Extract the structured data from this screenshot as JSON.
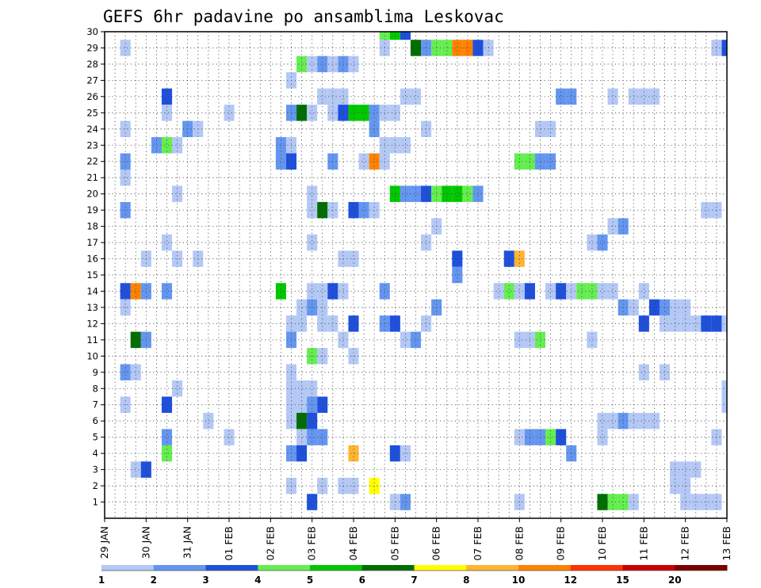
{
  "chart_data": {
    "type": "heatmap",
    "title": "GEFS 6hr padavine po ansamblima Leskovac",
    "xlabel": "",
    "ylabel": "",
    "x_tick_labels": [
      "29 JAN",
      "30 JAN",
      "31 JAN",
      "01 FEB",
      "02 FEB",
      "03 FEB",
      "04 FEB",
      "05 FEB",
      "06 FEB",
      "07 FEB",
      "08 FEB",
      "09 FEB",
      "10 FEB",
      "11 FEB",
      "12 FEB",
      "13 FEB"
    ],
    "x_range_6h_steps": [
      0,
      60
    ],
    "y_tick_labels": [
      "1",
      "2",
      "3",
      "4",
      "5",
      "6",
      "7",
      "8",
      "9",
      "10",
      "11",
      "12",
      "13",
      "14",
      "15",
      "16",
      "17",
      "18",
      "19",
      "20",
      "21",
      "22",
      "23",
      "24",
      "25",
      "26",
      "27",
      "28",
      "29",
      "30"
    ],
    "y_range": [
      0,
      30
    ],
    "grid": true,
    "legend": {
      "placement": "bottom",
      "colors": [
        "#b4c8f5",
        "#6496f0",
        "#1e50dc",
        "#64ee50",
        "#00c800",
        "#006e00",
        "#ffff00",
        "#ffb432",
        "#ff8200",
        "#ff3200",
        "#c80000",
        "#7d0000"
      ],
      "labels": [
        "1",
        "2",
        "3",
        "4",
        "5",
        "6",
        "7",
        "8",
        "10",
        "12",
        "15",
        "20"
      ]
    },
    "note_values": "cells: [time_step_index (6h steps from 29 JAN 00Z), member_row (0 = bottom row below member 1), color_class index into legend.colors]",
    "cells": [
      [
        2,
        29,
        0
      ],
      [
        59,
        29,
        0
      ],
      [
        60,
        29,
        2
      ],
      [
        27,
        29,
        0
      ],
      [
        30,
        29,
        5
      ],
      [
        31,
        29,
        1
      ],
      [
        32,
        29,
        3
      ],
      [
        33,
        29,
        3
      ],
      [
        34,
        29,
        8
      ],
      [
        35,
        29,
        8
      ],
      [
        36,
        29,
        2
      ],
      [
        37,
        29,
        0
      ],
      [
        27,
        30,
        3
      ],
      [
        28,
        30,
        4
      ],
      [
        29,
        30,
        2
      ],
      [
        19,
        28,
        3
      ],
      [
        20,
        28,
        0
      ],
      [
        21,
        28,
        1
      ],
      [
        22,
        28,
        0
      ],
      [
        23,
        28,
        1
      ],
      [
        24,
        28,
        0
      ],
      [
        18,
        27,
        0
      ],
      [
        6,
        26,
        2
      ],
      [
        21,
        26,
        0
      ],
      [
        22,
        26,
        0
      ],
      [
        23,
        26,
        0
      ],
      [
        29,
        26,
        0
      ],
      [
        30,
        26,
        0
      ],
      [
        44,
        26,
        1
      ],
      [
        45,
        26,
        1
      ],
      [
        49,
        26,
        0
      ],
      [
        51,
        26,
        0
      ],
      [
        52,
        26,
        0
      ],
      [
        53,
        26,
        0
      ],
      [
        6,
        25,
        0
      ],
      [
        12,
        25,
        0
      ],
      [
        18,
        25,
        1
      ],
      [
        19,
        25,
        5
      ],
      [
        20,
        25,
        0
      ],
      [
        22,
        25,
        0
      ],
      [
        23,
        25,
        2
      ],
      [
        24,
        25,
        4
      ],
      [
        25,
        25,
        4
      ],
      [
        26,
        25,
        1
      ],
      [
        27,
        25,
        0
      ],
      [
        28,
        25,
        0
      ],
      [
        2,
        24,
        0
      ],
      [
        8,
        24,
        1
      ],
      [
        9,
        24,
        0
      ],
      [
        26,
        24,
        1
      ],
      [
        31,
        24,
        0
      ],
      [
        42,
        24,
        0
      ],
      [
        43,
        24,
        0
      ],
      [
        5,
        23,
        1
      ],
      [
        6,
        23,
        3
      ],
      [
        7,
        23,
        0
      ],
      [
        17,
        23,
        1
      ],
      [
        18,
        23,
        0
      ],
      [
        27,
        23,
        0
      ],
      [
        28,
        23,
        0
      ],
      [
        29,
        23,
        0
      ],
      [
        2,
        22,
        1
      ],
      [
        17,
        22,
        1
      ],
      [
        18,
        22,
        2
      ],
      [
        22,
        22,
        1
      ],
      [
        25,
        22,
        0
      ],
      [
        26,
        22,
        8
      ],
      [
        27,
        22,
        0
      ],
      [
        40,
        22,
        3
      ],
      [
        41,
        22,
        3
      ],
      [
        42,
        22,
        1
      ],
      [
        43,
        22,
        1
      ],
      [
        2,
        21,
        0
      ],
      [
        7,
        20,
        0
      ],
      [
        20,
        20,
        0
      ],
      [
        28,
        20,
        4
      ],
      [
        29,
        20,
        1
      ],
      [
        30,
        20,
        1
      ],
      [
        31,
        20,
        2
      ],
      [
        32,
        20,
        3
      ],
      [
        33,
        20,
        4
      ],
      [
        34,
        20,
        4
      ],
      [
        35,
        20,
        3
      ],
      [
        36,
        20,
        1
      ],
      [
        2,
        19,
        1
      ],
      [
        20,
        19,
        0
      ],
      [
        21,
        19,
        5
      ],
      [
        22,
        19,
        0
      ],
      [
        24,
        19,
        2
      ],
      [
        25,
        19,
        1
      ],
      [
        26,
        19,
        0
      ],
      [
        58,
        19,
        0
      ],
      [
        59,
        19,
        0
      ],
      [
        32,
        18,
        0
      ],
      [
        49,
        18,
        0
      ],
      [
        50,
        18,
        1
      ],
      [
        6,
        17,
        0
      ],
      [
        20,
        17,
        0
      ],
      [
        31,
        17,
        0
      ],
      [
        47,
        17,
        0
      ],
      [
        48,
        17,
        1
      ],
      [
        4,
        16,
        0
      ],
      [
        7,
        16,
        0
      ],
      [
        9,
        16,
        0
      ],
      [
        23,
        16,
        0
      ],
      [
        24,
        16,
        0
      ],
      [
        34,
        16,
        2
      ],
      [
        39,
        16,
        2
      ],
      [
        40,
        16,
        7
      ],
      [
        34,
        15,
        1
      ],
      [
        27,
        14,
        1
      ],
      [
        2,
        14,
        2
      ],
      [
        3,
        14,
        8
      ],
      [
        4,
        14,
        1
      ],
      [
        6,
        14,
        1
      ],
      [
        17,
        14,
        4
      ],
      [
        20,
        14,
        0
      ],
      [
        21,
        14,
        0
      ],
      [
        22,
        14,
        2
      ],
      [
        23,
        14,
        0
      ],
      [
        38,
        14,
        0
      ],
      [
        39,
        14,
        3
      ],
      [
        40,
        14,
        0
      ],
      [
        41,
        14,
        2
      ],
      [
        43,
        14,
        0
      ],
      [
        44,
        14,
        2
      ],
      [
        45,
        14,
        0
      ],
      [
        46,
        14,
        3
      ],
      [
        47,
        14,
        3
      ],
      [
        48,
        14,
        0
      ],
      [
        49,
        14,
        0
      ],
      [
        52,
        14,
        0
      ],
      [
        2,
        13,
        0
      ],
      [
        19,
        13,
        0
      ],
      [
        20,
        13,
        1
      ],
      [
        21,
        13,
        0
      ],
      [
        32,
        13,
        1
      ],
      [
        50,
        13,
        1
      ],
      [
        51,
        13,
        0
      ],
      [
        53,
        13,
        2
      ],
      [
        54,
        13,
        1
      ],
      [
        55,
        13,
        0
      ],
      [
        56,
        13,
        0
      ],
      [
        18,
        12,
        0
      ],
      [
        19,
        12,
        0
      ],
      [
        21,
        12,
        0
      ],
      [
        22,
        12,
        0
      ],
      [
        24,
        12,
        2
      ],
      [
        27,
        12,
        1
      ],
      [
        28,
        12,
        2
      ],
      [
        31,
        12,
        0
      ],
      [
        52,
        12,
        2
      ],
      [
        54,
        12,
        0
      ],
      [
        55,
        12,
        0
      ],
      [
        56,
        12,
        0
      ],
      [
        57,
        12,
        0
      ],
      [
        58,
        12,
        2
      ],
      [
        59,
        12,
        2
      ],
      [
        60,
        12,
        0
      ],
      [
        3,
        11,
        5
      ],
      [
        4,
        11,
        1
      ],
      [
        18,
        11,
        1
      ],
      [
        23,
        11,
        0
      ],
      [
        29,
        11,
        0
      ],
      [
        30,
        11,
        1
      ],
      [
        40,
        11,
        0
      ],
      [
        41,
        11,
        0
      ],
      [
        42,
        11,
        3
      ],
      [
        47,
        11,
        0
      ],
      [
        20,
        10,
        3
      ],
      [
        21,
        10,
        0
      ],
      [
        24,
        10,
        0
      ],
      [
        2,
        9,
        1
      ],
      [
        3,
        9,
        0
      ],
      [
        18,
        9,
        0
      ],
      [
        52,
        9,
        0
      ],
      [
        54,
        9,
        0
      ],
      [
        7,
        8,
        0
      ],
      [
        18,
        8,
        0
      ],
      [
        19,
        8,
        0
      ],
      [
        20,
        8,
        0
      ],
      [
        60,
        8,
        0
      ],
      [
        2,
        7,
        0
      ],
      [
        6,
        7,
        2
      ],
      [
        18,
        7,
        0
      ],
      [
        19,
        7,
        0
      ],
      [
        20,
        7,
        1
      ],
      [
        21,
        7,
        2
      ],
      [
        60,
        7,
        0
      ],
      [
        10,
        6,
        0
      ],
      [
        18,
        6,
        0
      ],
      [
        19,
        6,
        5
      ],
      [
        20,
        6,
        2
      ],
      [
        48,
        6,
        0
      ],
      [
        49,
        6,
        0
      ],
      [
        50,
        6,
        1
      ],
      [
        51,
        6,
        0
      ],
      [
        52,
        6,
        0
      ],
      [
        53,
        6,
        0
      ],
      [
        6,
        5,
        1
      ],
      [
        12,
        5,
        0
      ],
      [
        19,
        5,
        0
      ],
      [
        20,
        5,
        1
      ],
      [
        21,
        5,
        1
      ],
      [
        40,
        5,
        0
      ],
      [
        41,
        5,
        1
      ],
      [
        42,
        5,
        1
      ],
      [
        43,
        5,
        3
      ],
      [
        44,
        5,
        2
      ],
      [
        48,
        5,
        0
      ],
      [
        59,
        5,
        0
      ],
      [
        6,
        4,
        3
      ],
      [
        18,
        4,
        1
      ],
      [
        19,
        4,
        2
      ],
      [
        24,
        4,
        7
      ],
      [
        28,
        4,
        2
      ],
      [
        29,
        4,
        0
      ],
      [
        45,
        4,
        1
      ],
      [
        3,
        3,
        0
      ],
      [
        4,
        3,
        2
      ],
      [
        55,
        3,
        0
      ],
      [
        56,
        3,
        0
      ],
      [
        57,
        3,
        0
      ],
      [
        18,
        2,
        0
      ],
      [
        21,
        2,
        0
      ],
      [
        23,
        2,
        0
      ],
      [
        24,
        2,
        0
      ],
      [
        26,
        2,
        6
      ],
      [
        55,
        2,
        0
      ],
      [
        56,
        2,
        0
      ],
      [
        20,
        1,
        2
      ],
      [
        28,
        1,
        0
      ],
      [
        29,
        1,
        1
      ],
      [
        40,
        1,
        0
      ],
      [
        48,
        1,
        5
      ],
      [
        49,
        1,
        3
      ],
      [
        50,
        1,
        3
      ],
      [
        51,
        1,
        0
      ],
      [
        56,
        1,
        0
      ],
      [
        57,
        1,
        0
      ],
      [
        58,
        1,
        0
      ],
      [
        59,
        1,
        0
      ]
    ]
  }
}
